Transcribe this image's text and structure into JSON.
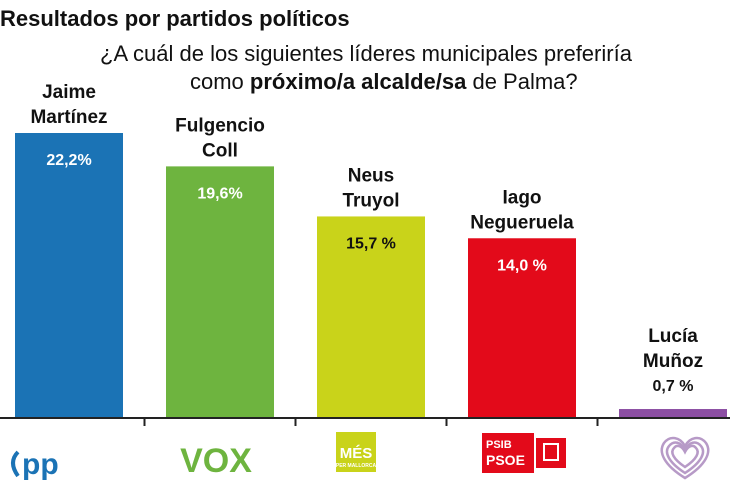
{
  "heading": "Resultados por partidos políticos",
  "question": {
    "line1": "¿A cuál de los siguientes líderes municipales preferiría",
    "line2_pre": "como ",
    "line2_bold": "próximo/a alcalde/sa",
    "line2_post": " de Palma?"
  },
  "chart_data": {
    "type": "bar",
    "title": "¿A cuál de los siguientes líderes municipales preferiría como próximo/a alcalde/sa de Palma?",
    "categories": [
      "Jaime Martínez",
      "Fulgencio Coll",
      "Neus Truyol",
      "Iago Negueruela",
      "Lucía Muñoz"
    ],
    "name_lines": [
      [
        "Jaime",
        "Martínez"
      ],
      [
        "Fulgencio",
        "Coll"
      ],
      [
        "Neus",
        "Truyol"
      ],
      [
        "Iago",
        "Negueruela"
      ],
      [
        "Lucía",
        "Muñoz"
      ]
    ],
    "values": [
      22.2,
      19.6,
      15.7,
      14.0,
      0.7
    ],
    "value_labels": [
      "22,2%",
      "19,6%",
      "15,7 %",
      "14,0 %",
      "0,7 %"
    ],
    "colors": [
      "#1b73b5",
      "#6eb43f",
      "#c9d31a",
      "#e30a1a",
      "#8c4fa3"
    ],
    "value_label_colors": [
      "#ffffff",
      "#ffffff",
      "#111111",
      "#ffffff",
      "#111111"
    ],
    "parties": [
      "PP",
      "VOX",
      "MÉS PER MALLORCA",
      "PSIB PSOE",
      "Podemos"
    ],
    "ylim": [
      0,
      22.2
    ],
    "xlabel": "",
    "ylabel": ""
  },
  "logos": {
    "pp": "pp",
    "vox": "VOX",
    "mes_main": "MÉS",
    "mes_sub": "PER MALLORCA",
    "psoe_line1": "PSIB",
    "psoe_line2": "PSOE"
  }
}
